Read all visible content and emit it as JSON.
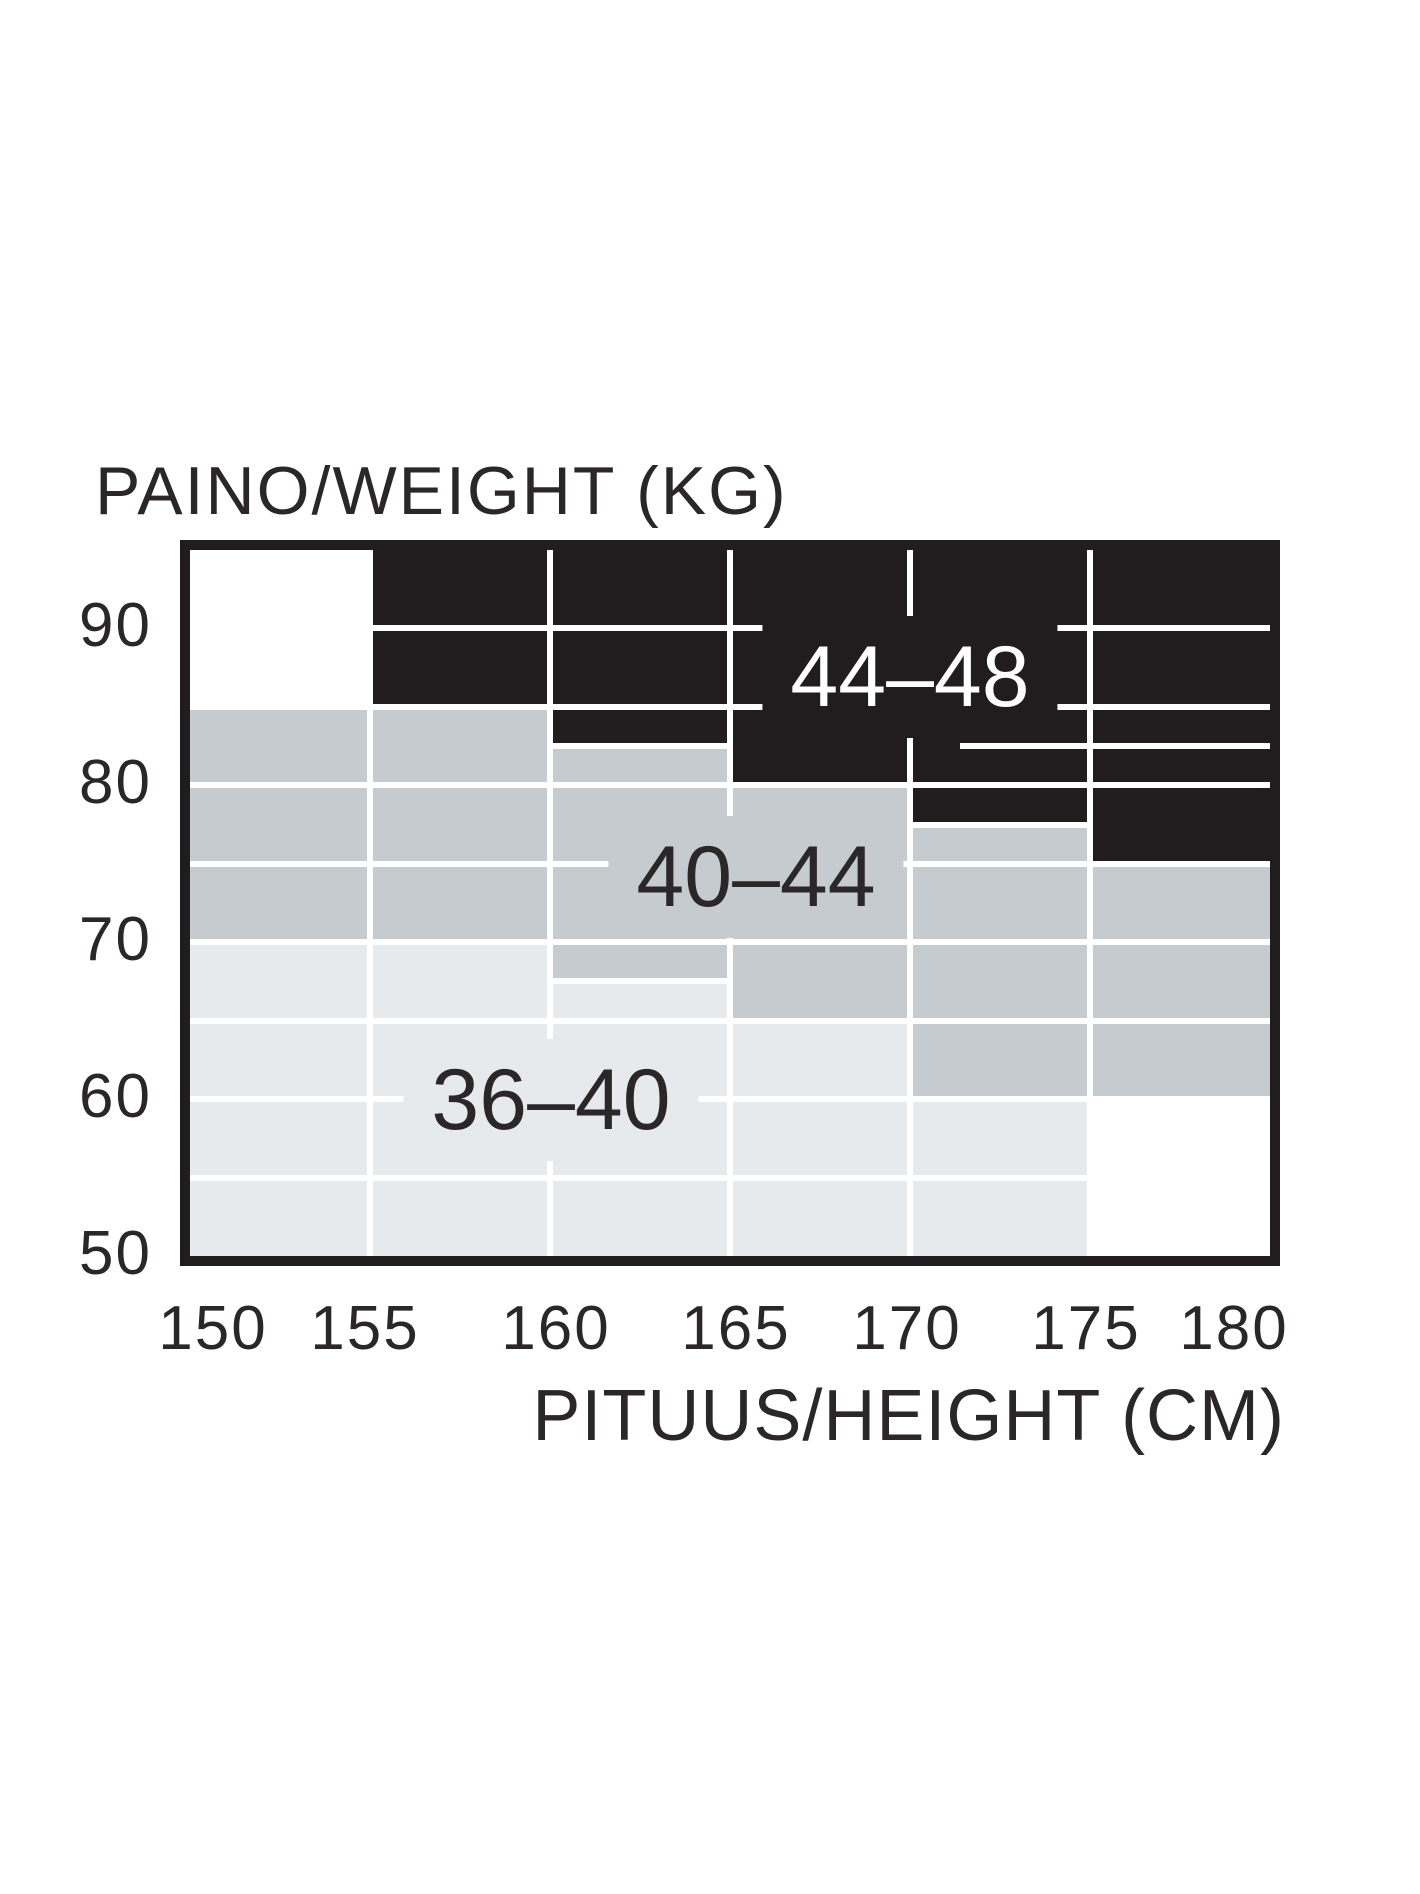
{
  "title": "PAINO/WEIGHT (KG)",
  "x_axis_title": "PITUUS/HEIGHT (CM)",
  "colors": {
    "background": "#ffffff",
    "frame": "#211d1e",
    "size_44_48": "#211d1e",
    "size_40_44": "#c5cbce",
    "size_36_40": "#e6eaec",
    "gridline": "#ffffff",
    "text": "#2b2728",
    "text_on_black": "#ffffff"
  },
  "chart_data": {
    "type": "heatmap",
    "title": "PAINO/WEIGHT (KG)",
    "xlabel": "PITUUS/HEIGHT (CM)",
    "ylabel": "PAINO/WEIGHT (KG)",
    "xlim": [
      150,
      180
    ],
    "ylim": [
      50,
      95
    ],
    "x_ticks": [
      150,
      155,
      160,
      165,
      170,
      175,
      180
    ],
    "x_tick_labels": [
      "150",
      "155",
      "160",
      "165",
      "170",
      "175",
      "180"
    ],
    "y_ticks": [
      90,
      80,
      70,
      60,
      50
    ],
    "y_tick_labels": [
      "90",
      "80",
      "70",
      "60",
      "50"
    ],
    "grid": "white lines every 5 kg and 5 cm",
    "legend_position": "labels drawn inside regions",
    "region_labels": [
      {
        "text": "44–48",
        "color": "#ffffff",
        "bg": "#211d1e"
      },
      {
        "text": "40–44",
        "color": "#2b2728",
        "bg": "#c5cbce"
      },
      {
        "text": "36–40",
        "color": "#2b2728",
        "bg": "#e6eaec"
      }
    ],
    "columns": [
      {
        "height_cm": [
          150,
          155
        ],
        "zones": [
          {
            "kg": [
              85,
              95
            ],
            "size": null
          },
          {
            "kg": [
              70,
              85
            ],
            "size": "40–44"
          },
          {
            "kg": [
              50,
              70
            ],
            "size": "36–40"
          }
        ]
      },
      {
        "height_cm": [
          155,
          160
        ],
        "zones": [
          {
            "kg": [
              85,
              95
            ],
            "size": "44–48"
          },
          {
            "kg": [
              70,
              85
            ],
            "size": "40–44"
          },
          {
            "kg": [
              50,
              70
            ],
            "size": "36–40"
          }
        ]
      },
      {
        "height_cm": [
          160,
          165
        ],
        "zones": [
          {
            "kg": [
              82.5,
              95
            ],
            "size": "44–48"
          },
          {
            "kg": [
              67.5,
              82.5
            ],
            "size": "40–44"
          },
          {
            "kg": [
              50,
              67.5
            ],
            "size": "36–40"
          }
        ]
      },
      {
        "height_cm": [
          165,
          170
        ],
        "zones": [
          {
            "kg": [
              80,
              95
            ],
            "size": "44–48"
          },
          {
            "kg": [
              65,
              80
            ],
            "size": "40–44"
          },
          {
            "kg": [
              50,
              65
            ],
            "size": "36–40"
          }
        ]
      },
      {
        "height_cm": [
          170,
          175
        ],
        "zones": [
          {
            "kg": [
              77.5,
              95
            ],
            "size": "44–48"
          },
          {
            "kg": [
              60,
              77.5
            ],
            "size": "40–44"
          },
          {
            "kg": [
              50,
              60
            ],
            "size": "36–40"
          }
        ]
      },
      {
        "height_cm": [
          175,
          180
        ],
        "zones": [
          {
            "kg": [
              75,
              95
            ],
            "size": "44–48"
          },
          {
            "kg": [
              60,
              75
            ],
            "size": "40–44"
          },
          {
            "kg": [
              50,
              60
            ],
            "size": null
          }
        ]
      }
    ],
    "h_gridlines_kg": [
      90,
      85,
      80,
      75,
      70,
      65,
      60,
      55
    ],
    "v_gridlines_cm": [
      155,
      160,
      165,
      170,
      175
    ],
    "extra_h_segments": [
      {
        "kg": 82.5,
        "note": "short white line on right side of black region"
      }
    ]
  }
}
